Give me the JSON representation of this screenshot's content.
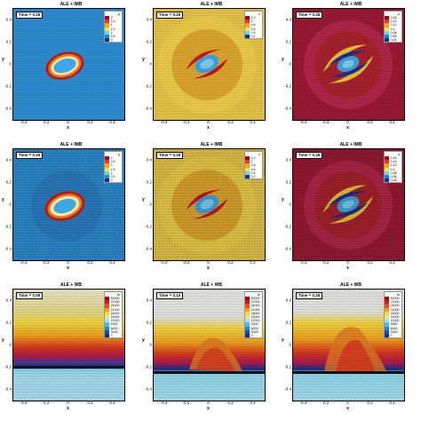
{
  "colors": {
    "blue_bg": "#2f8fd6",
    "yellow_bg": "#e0bf3b",
    "red_bg": "#9b1a35",
    "ellipse_light": "#f5e6a8",
    "ellipse_orange": "#e07a23",
    "ellipse_red": "#b31a1a",
    "core_blue": "#3fa6e6",
    "dark_blue": "#18308e",
    "blackband": "#141414"
  },
  "panels": [
    {
      "id": "r1c1",
      "title": "ALE + IMB",
      "time_label": "Time = 0.25",
      "legend_var": "p",
      "legend_values": [
        "3",
        "2.5",
        "2",
        "1.5",
        "1",
        "0.5",
        "0"
      ],
      "legend_colors": [
        "#a0001a",
        "#e23a1e",
        "#f7a21e",
        "#f5e441",
        "#6dd5e8",
        "#1c87d2",
        "#1a2f8a"
      ],
      "x_ticks": [
        "-0.4",
        "-0.2",
        "0",
        "0.2",
        "0.4"
      ],
      "y_ticks": [
        "0.4",
        "0.2",
        "0",
        "-0.2",
        "-0.4"
      ],
      "x_label": "x",
      "y_label": "y"
    },
    {
      "id": "r1c2",
      "title": "ALE + IMB",
      "time_label": "Time = 0.25",
      "legend_var": "v",
      "legend_values": [
        "1.2",
        "1",
        "0.8",
        "0.6",
        "0.4",
        "0.2"
      ],
      "legend_colors": [
        "#a0001a",
        "#e23a1e",
        "#f7a21e",
        "#f5e441",
        "#6dd5e8",
        "#1a2f8a"
      ],
      "x_ticks": [
        "-0.4",
        "-0.2",
        "0",
        "0.2",
        "0.4"
      ],
      "y_ticks": [
        "0.4",
        "0.2",
        "0",
        "-0.2",
        "-0.4"
      ],
      "x_label": "x",
      "y_label": "y"
    },
    {
      "id": "r1c3",
      "title": "ALE + IMB",
      "time_label": "Time = 0.25",
      "legend_var": "u",
      "legend_values": [
        "0.16",
        "0.14",
        "0.12",
        "0.1",
        "0.08",
        "0.06",
        "0.04"
      ],
      "legend_colors": [
        "#a0001a",
        "#e23a1e",
        "#f7a21e",
        "#f5e441",
        "#6dd5e8",
        "#1c87d2",
        "#1a2f8a"
      ],
      "x_ticks": [
        "-0.4",
        "-0.2",
        "0",
        "0.2",
        "0.4"
      ],
      "y_ticks": [
        "0.4",
        "0.2",
        "0",
        "-0.2",
        "-0.4"
      ],
      "x_label": "x",
      "y_label": "y"
    },
    {
      "id": "r2c1",
      "title": "ALE + IMB",
      "time_label": "Time = 0.25",
      "legend_var": "p",
      "legend_values": [
        "3",
        "2.5",
        "2",
        "1.5",
        "1",
        "0.5",
        "0"
      ],
      "legend_colors": [
        "#a0001a",
        "#e23a1e",
        "#f7a21e",
        "#f5e441",
        "#6dd5e8",
        "#1c87d2",
        "#1a2f8a"
      ],
      "x_ticks": [
        "-0.4",
        "-0.2",
        "0",
        "0.2",
        "0.4"
      ],
      "y_ticks": [
        "0.4",
        "0.2",
        "0",
        "-0.2",
        "-0.4"
      ],
      "x_label": "x",
      "y_label": "y"
    },
    {
      "id": "r2c2",
      "title": "ALE + IMB",
      "time_label": "Time = 0.25",
      "legend_var": "v",
      "legend_values": [
        "1.2",
        "1",
        "0.8",
        "0.6",
        "0.4",
        "0.2"
      ],
      "legend_colors": [
        "#a0001a",
        "#e23a1e",
        "#f7a21e",
        "#f5e441",
        "#6dd5e8",
        "#1a2f8a"
      ],
      "x_ticks": [
        "-0.4",
        "-0.2",
        "0",
        "0.2",
        "0.4"
      ],
      "y_ticks": [
        "0.4",
        "0.2",
        "0",
        "-0.2",
        "-0.4"
      ],
      "x_label": "x",
      "y_label": "y"
    },
    {
      "id": "r2c3",
      "title": "ALE + IMB",
      "time_label": "Time = 0.25",
      "legend_var": "u",
      "legend_values": [
        "0.16",
        "0.14",
        "0.12",
        "0.1",
        "0.08",
        "0.06",
        "0.04"
      ],
      "legend_colors": [
        "#a0001a",
        "#e23a1e",
        "#f7a21e",
        "#f5e441",
        "#6dd5e8",
        "#1c87d2",
        "#1a2f8a"
      ],
      "x_ticks": [
        "-0.4",
        "-0.2",
        "0",
        "0.2",
        "0.4"
      ],
      "y_ticks": [
        "0.4",
        "0.2",
        "0",
        "-0.2",
        "-0.4"
      ],
      "x_label": "x",
      "y_label": "y"
    },
    {
      "id": "r3c1",
      "title": "ALE + WB",
      "time_label": "Time = 0.00",
      "legend_var": "ie",
      "legend_values": [
        "30000",
        "27000",
        "24000",
        "21000",
        "18000",
        "15000",
        "12000",
        "9000",
        "6000",
        "3000",
        "0"
      ],
      "legend_colors": [
        "#a0001a",
        "#c81e1e",
        "#e8501e",
        "#f7a21e",
        "#f5d641",
        "#e8eb7a",
        "#9fe2e8",
        "#4cb6e4",
        "#1c87d2",
        "#1a4fb0",
        "#1a2f8a"
      ],
      "x_ticks": [
        "-0.4",
        "-0.2",
        "0",
        "0.2",
        "0.4"
      ],
      "y_ticks": [
        "0.4",
        "0.2",
        "0",
        "-0.2",
        "-0.4"
      ],
      "x_label": "x",
      "y_label": "y"
    },
    {
      "id": "r3c2",
      "title": "ALE + WB",
      "time_label": "Time = 0.10",
      "legend_var": "ie",
      "legend_values": [
        "30000",
        "27000",
        "24000",
        "21000",
        "18000",
        "15000",
        "12000",
        "9000",
        "6000",
        "3000",
        "0"
      ],
      "legend_colors": [
        "#a0001a",
        "#c81e1e",
        "#e8501e",
        "#f7a21e",
        "#f5d641",
        "#e8eb7a",
        "#9fe2e8",
        "#4cb6e4",
        "#1c87d2",
        "#1a4fb0",
        "#1a2f8a"
      ],
      "x_ticks": [
        "-0.4",
        "-0.2",
        "0",
        "0.2",
        "0.4"
      ],
      "y_ticks": [
        "0.4",
        "0.2",
        "0",
        "-0.2",
        "-0.4"
      ],
      "x_label": "x",
      "y_label": "y"
    },
    {
      "id": "r3c3",
      "title": "ALE + WB",
      "time_label": "Time = 0.25",
      "legend_var": "ie",
      "legend_values": [
        "30000",
        "27000",
        "24000",
        "21000",
        "18000",
        "15000",
        "12000",
        "9000",
        "6000",
        "3000",
        "0"
      ],
      "legend_colors": [
        "#a0001a",
        "#c81e1e",
        "#e8501e",
        "#f7a21e",
        "#f5d641",
        "#e8eb7a",
        "#9fe2e8",
        "#4cb6e4",
        "#1c87d2",
        "#1a4fb0",
        "#1a2f8a"
      ],
      "x_ticks": [
        "-0.4",
        "-0.2",
        "0",
        "0.2",
        "0.4"
      ],
      "y_ticks": [
        "0.4",
        "0.2",
        "0",
        "-0.2",
        "-0.4"
      ],
      "x_label": "x",
      "y_label": "y"
    }
  ]
}
